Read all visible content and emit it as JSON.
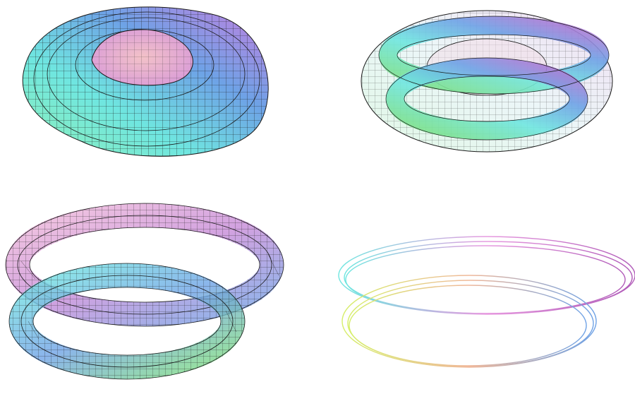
{
  "figure": {
    "panels": [
      {
        "id": "torus-solid",
        "rendering": "solid-mesh"
      },
      {
        "id": "torus-translucent-with-double-tube",
        "rendering": "translucent-mesh"
      },
      {
        "id": "double-tube-mesh",
        "rendering": "translucent-mesh"
      },
      {
        "id": "thin-double-loops",
        "rendering": "thin-lines"
      }
    ]
  },
  "colors": {
    "pink": "#e79be0",
    "violet": "#a86fd8",
    "blue": "#6ea2e6",
    "cyan": "#6fe6e0",
    "mint": "#8ff0b8",
    "green": "#7fe07a",
    "lime": "#d6ef6a",
    "peach": "#f0b89a",
    "mesh": "#1a1a1a"
  }
}
